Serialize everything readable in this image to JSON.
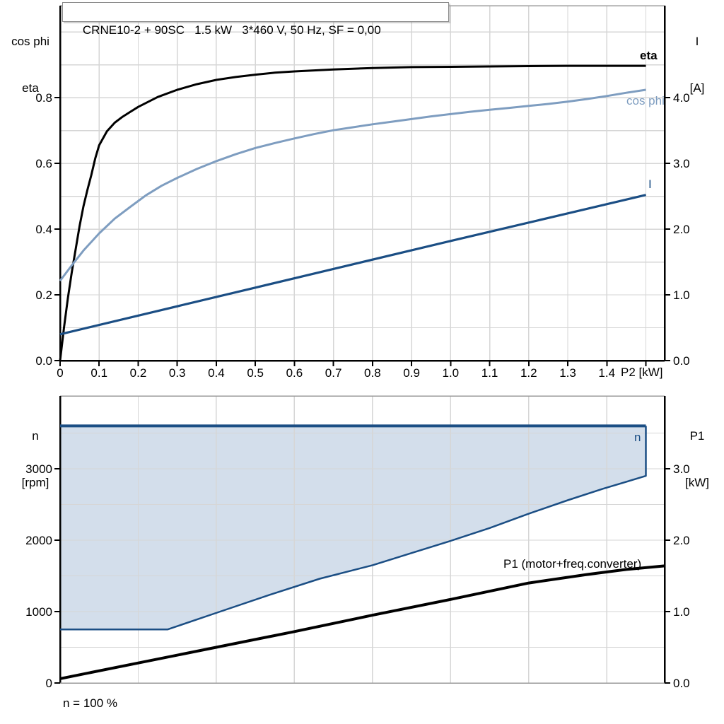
{
  "title_box": {
    "text": "CRNE10-2 + 90SC   1.5 kW   3*460 V, 50 Hz, SF = 0,00"
  },
  "colors": {
    "eta_curve": "#000000",
    "cos_phi_curve": "#7E9DC0",
    "current_curve": "#1B4E84",
    "speed_region_fill": "#D3DEEB",
    "speed_region_border": "#1B4E84",
    "p1_curve": "#000000",
    "gridline": "#D6D6D6",
    "plot_border_gray": "#9A9A9A",
    "axis_black": "#000000"
  },
  "top_chart": {
    "left_axis_title_line1": "cos phi",
    "left_axis_title_line2": "eta",
    "right_axis_title_line1": "I",
    "right_axis_title_line2": "[A]",
    "x_axis_title": "P2 [kW]",
    "curve_labels": {
      "eta": "eta",
      "cos_phi": "cos phi",
      "current": "I"
    }
  },
  "bottom_chart": {
    "left_axis_title_line1": "n",
    "left_axis_title_line2": "[rpm]",
    "right_axis_title_line1": "P1",
    "right_axis_title_line2": "[kW]",
    "curve_labels": {
      "speed_range": "n",
      "p1": "P1 (motor+freq.converter)"
    },
    "footnote": "n = 100 %"
  },
  "chart_data": [
    {
      "id": "top",
      "type": "line",
      "title": "CRNE10-2 + 90SC  1.5 kW  3*460 V, 50 Hz, SF = 0,00",
      "xlabel": "P2 [kW]",
      "ylabel_left": "cos phi / eta",
      "ylabel_right": "I [A]",
      "xlim": [
        0,
        1.548
      ],
      "ylim_left": [
        0,
        1.08
      ],
      "ylim_right": [
        0,
        5.4
      ],
      "grid_x": [
        0.1,
        0.2,
        0.3,
        0.4,
        0.5,
        0.6,
        0.7,
        0.8,
        0.9,
        1.0,
        1.1,
        1.2,
        1.3,
        1.4,
        1.5
      ],
      "grid_y": [
        0.1,
        0.2,
        0.3,
        0.4,
        0.5,
        0.6,
        0.7,
        0.8,
        0.9,
        1.0
      ],
      "borders": [
        {
          "side": "top",
          "color": "#9A9A9A",
          "width": 1.5
        },
        {
          "side": "left",
          "color": "#000000",
          "width": 2.5
        },
        {
          "side": "right",
          "color": "#000000",
          "width": 2.5
        },
        {
          "side": "bottom",
          "color": "#000000",
          "width": 2.5
        }
      ],
      "ticks": [
        {
          "axis": "left",
          "values": [
            0,
            0.2,
            0.4,
            0.6,
            0.8
          ],
          "labels": [
            "0.0",
            "0.2",
            "0.4",
            "0.6",
            "0.8"
          ]
        },
        {
          "axis": "right",
          "values": [
            0,
            1,
            2,
            3,
            4
          ],
          "labels": [
            "0.0",
            "1.0",
            "2.0",
            "3.0",
            "4.0"
          ]
        },
        {
          "axis": "x",
          "values": [
            0,
            0.1,
            0.2,
            0.3,
            0.4,
            0.5,
            0.6,
            0.7,
            0.8,
            0.9,
            1.0,
            1.1,
            1.2,
            1.3,
            1.4,
            1.5
          ],
          "labels": [
            "0",
            "0.1",
            "0.2",
            "0.3",
            "0.4",
            "0.5",
            "0.6",
            "0.7",
            "0.8",
            "0.9",
            "1.0",
            "1.1",
            "1.2",
            "1.3",
            "1.4",
            ""
          ]
        }
      ],
      "series": [
        {
          "name": "eta",
          "axis": "left",
          "color": "#000000",
          "width": 3,
          "type": "line",
          "points": [
            [
              0,
              0
            ],
            [
              0.01,
              0.1
            ],
            [
              0.02,
              0.19
            ],
            [
              0.03,
              0.27
            ],
            [
              0.04,
              0.34
            ],
            [
              0.05,
              0.41
            ],
            [
              0.06,
              0.47
            ],
            [
              0.07,
              0.52
            ],
            [
              0.08,
              0.565
            ],
            [
              0.09,
              0.615
            ],
            [
              0.1,
              0.655
            ],
            [
              0.12,
              0.698
            ],
            [
              0.14,
              0.724
            ],
            [
              0.16,
              0.742
            ],
            [
              0.18,
              0.757
            ],
            [
              0.2,
              0.772
            ],
            [
              0.25,
              0.802
            ],
            [
              0.3,
              0.824
            ],
            [
              0.35,
              0.841
            ],
            [
              0.4,
              0.854
            ],
            [
              0.45,
              0.863
            ],
            [
              0.5,
              0.87
            ],
            [
              0.55,
              0.876
            ],
            [
              0.6,
              0.88
            ],
            [
              0.65,
              0.883
            ],
            [
              0.7,
              0.886
            ],
            [
              0.75,
              0.888
            ],
            [
              0.8,
              0.89
            ],
            [
              0.9,
              0.893
            ],
            [
              1.0,
              0.894
            ],
            [
              1.1,
              0.895
            ],
            [
              1.2,
              0.896
            ],
            [
              1.3,
              0.897
            ],
            [
              1.4,
              0.897
            ],
            [
              1.5,
              0.897
            ]
          ]
        },
        {
          "name": "cos phi",
          "axis": "left",
          "color": "#7E9DC0",
          "width": 3,
          "type": "line",
          "points": [
            [
              0,
              0.243
            ],
            [
              0.03,
              0.29
            ],
            [
              0.06,
              0.335
            ],
            [
              0.1,
              0.387
            ],
            [
              0.14,
              0.432
            ],
            [
              0.18,
              0.468
            ],
            [
              0.22,
              0.503
            ],
            [
              0.26,
              0.532
            ],
            [
              0.3,
              0.556
            ],
            [
              0.35,
              0.583
            ],
            [
              0.4,
              0.607
            ],
            [
              0.45,
              0.628
            ],
            [
              0.5,
              0.647
            ],
            [
              0.55,
              0.662
            ],
            [
              0.6,
              0.676
            ],
            [
              0.65,
              0.689
            ],
            [
              0.7,
              0.701
            ],
            [
              0.75,
              0.71
            ],
            [
              0.8,
              0.719
            ],
            [
              0.85,
              0.727
            ],
            [
              0.9,
              0.735
            ],
            [
              0.95,
              0.743
            ],
            [
              1.0,
              0.75
            ],
            [
              1.05,
              0.757
            ],
            [
              1.1,
              0.763
            ],
            [
              1.15,
              0.769
            ],
            [
              1.2,
              0.775
            ],
            [
              1.25,
              0.781
            ],
            [
              1.3,
              0.788
            ],
            [
              1.35,
              0.796
            ],
            [
              1.4,
              0.805
            ],
            [
              1.45,
              0.815
            ],
            [
              1.5,
              0.824
            ]
          ]
        },
        {
          "name": "I",
          "axis": "right",
          "color": "#1B4E84",
          "width": 3.2,
          "type": "line",
          "points": [
            [
              0,
              0.4
            ],
            [
              0.25,
              0.755
            ],
            [
              0.5,
              1.11
            ],
            [
              0.75,
              1.465
            ],
            [
              1.0,
              1.82
            ],
            [
              1.25,
              2.17
            ],
            [
              1.5,
              2.52
            ]
          ]
        }
      ]
    },
    {
      "id": "bottom",
      "type": "line+area",
      "xlabel": "P2 [kW]",
      "ylabel_left": "n [rpm]",
      "ylabel_right": "P1 [kW]",
      "xlim": [
        0,
        1.548
      ],
      "ylim_left": [
        0,
        4020
      ],
      "ylim_right": [
        0,
        4.02
      ],
      "grid_x": [
        0.2,
        0.4,
        0.6,
        0.8,
        1.0,
        1.2,
        1.4
      ],
      "grid_y": [
        500,
        1000,
        1500,
        2000,
        2500,
        3000,
        3500
      ],
      "borders": [
        {
          "side": "top",
          "color": "#9A9A9A",
          "width": 1.5
        },
        {
          "side": "left",
          "color": "#000000",
          "width": 2.5
        },
        {
          "side": "right",
          "color": "#000000",
          "width": 2.5
        },
        {
          "side": "bottom",
          "color": "#9A9A9A",
          "width": 1.5
        }
      ],
      "ticks": [
        {
          "axis": "left",
          "values": [
            0,
            1000,
            2000,
            3000
          ],
          "labels": [
            "0",
            "1000",
            "2000",
            "3000"
          ]
        },
        {
          "axis": "right",
          "values": [
            0,
            1,
            2,
            3
          ],
          "labels": [
            "0.0",
            "1.0",
            "2.0",
            "3.0"
          ]
        }
      ],
      "series": [
        {
          "name": "speed range area",
          "axis": "left",
          "type": "area",
          "fill": "#D3DEEB",
          "points": [
            [
              0,
              3600
            ],
            [
              1.5,
              3600
            ],
            [
              1.5,
              2900
            ],
            [
              1.39,
              2720
            ],
            [
              1.3,
              2560
            ],
            [
              1.2,
              2370
            ],
            [
              1.1,
              2170
            ],
            [
              1.0,
              1990
            ],
            [
              0.9,
              1820
            ],
            [
              0.8,
              1650
            ],
            [
              0.665,
              1460
            ],
            [
              0.534,
              1230
            ],
            [
              0.402,
              985
            ],
            [
              0.275,
              750
            ],
            [
              0,
              750
            ]
          ]
        },
        {
          "name": "n max",
          "axis": "left",
          "color": "#1B4E84",
          "width": 4,
          "type": "line",
          "points": [
            [
              0,
              3600
            ],
            [
              1.5,
              3600
            ]
          ]
        },
        {
          "name": "n min boundary",
          "axis": "left",
          "color": "#1B4E84",
          "width": 2.5,
          "type": "line",
          "points": [
            [
              1.5,
              3600
            ],
            [
              1.5,
              2900
            ],
            [
              1.39,
              2720
            ],
            [
              1.3,
              2560
            ],
            [
              1.2,
              2370
            ],
            [
              1.1,
              2170
            ],
            [
              1.0,
              1990
            ],
            [
              0.9,
              1820
            ],
            [
              0.8,
              1650
            ],
            [
              0.665,
              1460
            ],
            [
              0.534,
              1230
            ],
            [
              0.402,
              985
            ],
            [
              0.275,
              750
            ],
            [
              0,
              750
            ]
          ]
        },
        {
          "name": "P1 (motor+freq.converter)",
          "axis": "right",
          "color": "#000000",
          "width": 4,
          "type": "line",
          "points": [
            [
              0,
              0.06
            ],
            [
              0.2,
              0.28
            ],
            [
              0.4,
              0.5
            ],
            [
              0.6,
              0.72
            ],
            [
              0.8,
              0.95
            ],
            [
              1.0,
              1.17
            ],
            [
              1.2,
              1.4
            ],
            [
              1.35,
              1.52
            ],
            [
              1.45,
              1.59
            ],
            [
              1.548,
              1.64
            ]
          ]
        }
      ]
    }
  ]
}
